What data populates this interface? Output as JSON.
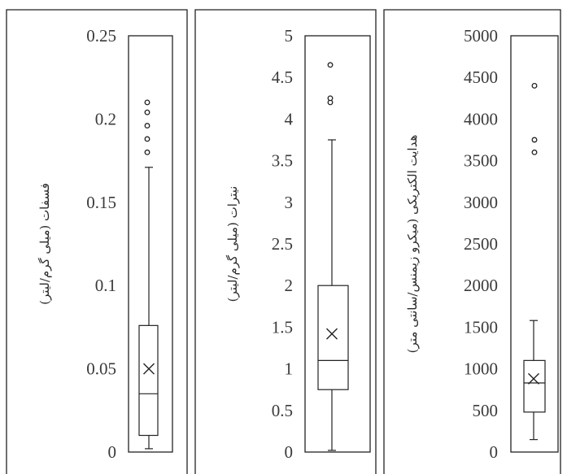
{
  "chart_data": [
    {
      "type": "box",
      "ylabel": "فسفات (میلی گرم/لیتر)",
      "ylim": [
        0,
        0.25
      ],
      "ticks": [
        0,
        0.05,
        0.1,
        0.15,
        0.2,
        0.25
      ],
      "tick_labels": [
        "0",
        "0.05",
        "0.1",
        "0.15",
        "0.2",
        "0.25"
      ],
      "box": {
        "whisker_low": 0.002,
        "q1": 0.01,
        "median": 0.035,
        "mean": 0.05,
        "q3": 0.076,
        "whisker_high": 0.171
      },
      "outliers": [
        0.18,
        0.188,
        0.196,
        0.204,
        0.21
      ]
    },
    {
      "type": "box",
      "ylabel": "نیترات (میلی گرم/لیتر)",
      "ylim": [
        0,
        5
      ],
      "ticks": [
        0,
        0.5,
        1,
        1.5,
        2,
        2.5,
        3,
        3.5,
        4,
        4.5,
        5
      ],
      "tick_labels": [
        "0",
        "0.5",
        "1",
        "1.5",
        "2",
        "2.5",
        "3",
        "3.5",
        "4",
        "4.5",
        "5"
      ],
      "box": {
        "whisker_low": 0.02,
        "q1": 0.75,
        "median": 1.1,
        "mean": 1.42,
        "q3": 2.0,
        "whisker_high": 3.75
      },
      "outliers": [
        4.2,
        4.25,
        4.65
      ]
    },
    {
      "type": "box",
      "ylabel": "هدایت الکتریکی (میکرو زیمنس/سانتی متر)",
      "ylim": [
        0,
        5000
      ],
      "ticks": [
        0,
        500,
        1000,
        1500,
        2000,
        2500,
        3000,
        3500,
        4000,
        4500,
        5000
      ],
      "tick_labels": [
        "0",
        "500",
        "1000",
        "1500",
        "2000",
        "2500",
        "3000",
        "3500",
        "4000",
        "4500",
        "5000"
      ],
      "box": {
        "whisker_low": 150,
        "q1": 480,
        "median": 830,
        "mean": 880,
        "q3": 1100,
        "whisker_high": 1580
      },
      "outliers": [
        3600,
        3750,
        4400
      ]
    }
  ]
}
